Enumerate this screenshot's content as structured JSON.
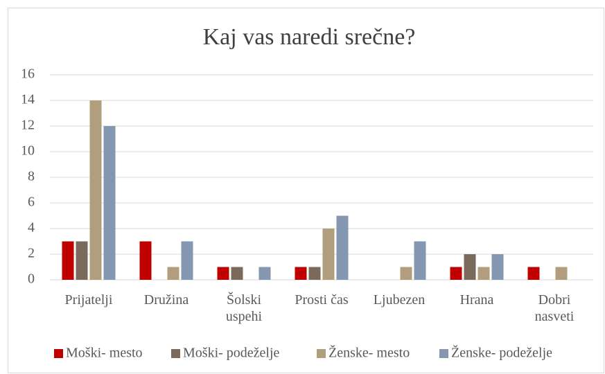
{
  "chart_data": {
    "type": "bar",
    "title": "Kaj vas naredi srečne?",
    "categories": [
      "Prijatelji",
      "Družina",
      "Šolski uspehi",
      "Prosti čas",
      "Ljubezen",
      "Hrana",
      "Dobri nasveti"
    ],
    "series": [
      {
        "name": "Moški- mesto",
        "color": "#c00000",
        "values": [
          3,
          3,
          1,
          1,
          0,
          1,
          1
        ]
      },
      {
        "name": "Moški- podeželje",
        "color": "#7b6a5c",
        "values": [
          3,
          0,
          1,
          1,
          0,
          2,
          0
        ]
      },
      {
        "name": "Ženske- mesto",
        "color": "#b09e7c",
        "values": [
          14,
          1,
          0,
          4,
          1,
          1,
          1
        ]
      },
      {
        "name": "Ženske- podeželje",
        "color": "#8496b0",
        "values": [
          12,
          3,
          1,
          5,
          3,
          2,
          0
        ]
      }
    ],
    "ylim": [
      0,
      16
    ],
    "yticks": [
      0,
      2,
      4,
      6,
      8,
      10,
      12,
      14,
      16
    ],
    "grid": true,
    "legend": "bottom"
  }
}
